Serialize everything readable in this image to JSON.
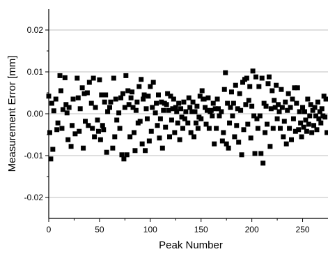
{
  "chart_data": {
    "type": "scatter",
    "xlabel": "Peak Number",
    "ylabel": "Measurement Error [mm]",
    "xlim": [
      0,
      275
    ],
    "ylim": [
      -0.025,
      0.025
    ],
    "x_ticks": [
      0,
      50,
      100,
      150,
      200,
      250
    ],
    "x_tick_labels": [
      "0",
      "50",
      "100",
      "150",
      "200",
      "250"
    ],
    "y_ticks": [
      -0.02,
      -0.01,
      0.0,
      0.01,
      0.02
    ],
    "y_tick_labels": [
      "-0.02",
      "-0.01",
      "0.00",
      "0.01",
      "0.02"
    ],
    "grid": "horizontal",
    "marker": "square",
    "colors": {
      "marker": "#000000",
      "grid": "#bfbfbf",
      "axis": "#000000",
      "background": "#ffffff"
    },
    "series": [
      {
        "points": [
          [
            0,
            0.0042
          ],
          [
            1,
            -0.0045
          ],
          [
            2,
            -0.0108
          ],
          [
            3,
            0.0025
          ],
          [
            4,
            -0.0085
          ],
          [
            5,
            0.0007
          ],
          [
            7,
            0.0035
          ],
          [
            8,
            -0.0038
          ],
          [
            9,
            -0.0022
          ],
          [
            11,
            0.0091
          ],
          [
            12,
            0.0055
          ],
          [
            13,
            -0.0035
          ],
          [
            14,
            0.001
          ],
          [
            16,
            0.0086
          ],
          [
            17,
            0.0022
          ],
          [
            18,
            0.0002
          ],
          [
            19,
            -0.0062
          ],
          [
            20,
            0.0015
          ],
          [
            22,
            -0.0078
          ],
          [
            23,
            -0.0028
          ],
          [
            24,
            0.0035
          ],
          [
            26,
            -0.0048
          ],
          [
            28,
            0.0085
          ],
          [
            29,
            0.0038
          ],
          [
            30,
            -0.0042
          ],
          [
            31,
            0.0012
          ],
          [
            33,
            0.0062
          ],
          [
            34,
            -0.0082
          ],
          [
            35,
            0.0048
          ],
          [
            36,
            -0.0018
          ],
          [
            38,
            0.005
          ],
          [
            39,
            -0.0028
          ],
          [
            40,
            0.0075
          ],
          [
            42,
            0.0025
          ],
          [
            43,
            -0.0035
          ],
          [
            44,
            0.0085
          ],
          [
            45,
            -0.0055
          ],
          [
            46,
            0.0015
          ],
          [
            48,
            -0.0015
          ],
          [
            49,
            -0.0042
          ],
          [
            50,
            0.0081
          ],
          [
            51,
            -0.0062
          ],
          [
            52,
            0.0045
          ],
          [
            53,
            -0.0028
          ],
          [
            54,
            -0.0038
          ],
          [
            55,
            0.0028
          ],
          [
            56,
            0.0045
          ],
          [
            57,
            -0.0092
          ],
          [
            58,
            0.0005
          ],
          [
            60,
            0.0015
          ],
          [
            61,
            0.0028
          ],
          [
            63,
            -0.0082
          ],
          [
            64,
            0.0085
          ],
          [
            65,
            -0.0055
          ],
          [
            66,
            0.0035
          ],
          [
            67,
            -0.0015
          ],
          [
            69,
            0.0002
          ],
          [
            70,
            -0.0035
          ],
          [
            71,
            0.0038
          ],
          [
            72,
            -0.0098
          ],
          [
            73,
            0.0048
          ],
          [
            74,
            -0.0108
          ],
          [
            75,
            0.0015
          ],
          [
            76,
            0.0091
          ],
          [
            77,
            -0.0098
          ],
          [
            78,
            0.0055
          ],
          [
            79,
            0.0022
          ],
          [
            80,
            -0.0055
          ],
          [
            81,
            0.0038
          ],
          [
            82,
            0.0052
          ],
          [
            83,
            0.0015
          ],
          [
            84,
            -0.0045
          ],
          [
            85,
            -0.0088
          ],
          [
            86,
            0.0008
          ],
          [
            87,
            0.0028
          ],
          [
            88,
            -0.0022
          ],
          [
            89,
            0.0065
          ],
          [
            90,
            -0.0018
          ],
          [
            91,
            0.0082
          ],
          [
            92,
            -0.0072
          ],
          [
            93,
            0.0035
          ],
          [
            94,
            0.0045
          ],
          [
            95,
            -0.0088
          ],
          [
            96,
            0.0012
          ],
          [
            97,
            -0.0012
          ],
          [
            98,
            0.0042
          ],
          [
            99,
            -0.0065
          ],
          [
            100,
            0.0065
          ],
          [
            101,
            -0.0042
          ],
          [
            102,
            0.0015
          ],
          [
            103,
            0.0075
          ],
          [
            105,
            0.0002
          ],
          [
            106,
            0.0025
          ],
          [
            107,
            -0.0028
          ],
          [
            108,
            0.0045
          ],
          [
            109,
            -0.0058
          ],
          [
            110,
            -0.0012
          ],
          [
            111,
            0.0028
          ],
          [
            112,
            -0.0082
          ],
          [
            113,
            0.0008
          ],
          [
            114,
            0.0025
          ],
          [
            115,
            -0.0032
          ],
          [
            116,
            0.0022
          ],
          [
            117,
            0.0048
          ],
          [
            118,
            0.0008
          ],
          [
            119,
            -0.0055
          ],
          [
            120,
            0.0042
          ],
          [
            121,
            -0.0015
          ],
          [
            122,
            0.0012
          ],
          [
            123,
            0.0035
          ],
          [
            124,
            -0.0045
          ],
          [
            125,
            0.0015
          ],
          [
            126,
            0.0005
          ],
          [
            127,
            -0.0022
          ],
          [
            128,
            0.0025
          ],
          [
            129,
            -0.0062
          ],
          [
            130,
            0.0012
          ],
          [
            131,
            -0.0008
          ],
          [
            132,
            -0.0035
          ],
          [
            133,
            0.0028
          ],
          [
            134,
            -0.0012
          ],
          [
            135,
            0.0005
          ],
          [
            137,
            -0.0022
          ],
          [
            138,
            0.0038
          ],
          [
            139,
            0.0015
          ],
          [
            140,
            -0.0045
          ],
          [
            141,
            0.0005
          ],
          [
            142,
            0.0028
          ],
          [
            143,
            -0.0055
          ],
          [
            144,
            0.0005
          ],
          [
            145,
            -0.0022
          ],
          [
            146,
            0.0018
          ],
          [
            147,
            -0.0035
          ],
          [
            148,
            -0.0008
          ],
          [
            149,
            0.0042
          ],
          [
            150,
            -0.0012
          ],
          [
            151,
            0.0055
          ],
          [
            152,
            0.0035
          ],
          [
            153,
            0.0035
          ],
          [
            154,
            0.0015
          ],
          [
            155,
            -0.0025
          ],
          [
            156,
            0.0008
          ],
          [
            157,
            0.0038
          ],
          [
            158,
            -0.0035
          ],
          [
            159,
            0.0005
          ],
          [
            160,
            0.0008
          ],
          [
            161,
            -0.0005
          ],
          [
            162,
            0.0025
          ],
          [
            163,
            -0.0072
          ],
          [
            164,
            0.0012
          ],
          [
            165,
            -0.0035
          ],
          [
            166,
            0.0035
          ],
          [
            167,
            0.0012
          ],
          [
            168,
            -0.0005
          ],
          [
            170,
            0.0005
          ],
          [
            171,
            -0.0065
          ],
          [
            172,
            -0.0045
          ],
          [
            173,
            0.0058
          ],
          [
            174,
            0.0098
          ],
          [
            175,
            -0.0072
          ],
          [
            176,
            0.0025
          ],
          [
            177,
            -0.0082
          ],
          [
            178,
            -0.0022
          ],
          [
            179,
            0.0015
          ],
          [
            180,
            0.0052
          ],
          [
            181,
            -0.0005
          ],
          [
            182,
            0.0025
          ],
          [
            183,
            -0.0055
          ],
          [
            184,
            0.0068
          ],
          [
            185,
            -0.0028
          ],
          [
            186,
            0.0012
          ],
          [
            187,
            -0.0068
          ],
          [
            188,
            0.0048
          ],
          [
            189,
            0.0008
          ],
          [
            190,
            -0.0098
          ],
          [
            191,
            0.0075
          ],
          [
            192,
            -0.0038
          ],
          [
            193,
            0.0082
          ],
          [
            194,
            0.0022
          ],
          [
            195,
            0.0085
          ],
          [
            196,
            -0.0025
          ],
          [
            197,
            0.0032
          ],
          [
            198,
            0.0065
          ],
          [
            199,
            -0.0058
          ],
          [
            200,
            0.0018
          ],
          [
            201,
            0.0102
          ],
          [
            202,
            -0.0005
          ],
          [
            203,
            -0.0095
          ],
          [
            204,
            0.0088
          ],
          [
            205,
            -0.0012
          ],
          [
            206,
            -0.0035
          ],
          [
            207,
            0.0065
          ],
          [
            208,
            -0.0005
          ],
          [
            209,
            -0.0095
          ],
          [
            210,
            0.0085
          ],
          [
            211,
            -0.0118
          ],
          [
            212,
            0.0025
          ],
          [
            213,
            -0.0045
          ],
          [
            214,
            0.0018
          ],
          [
            215,
            -0.0025
          ],
          [
            216,
            0.0072
          ],
          [
            217,
            0.0088
          ],
          [
            218,
            -0.0078
          ],
          [
            219,
            0.0012
          ],
          [
            220,
            0.0055
          ],
          [
            221,
            -0.0035
          ],
          [
            222,
            0.0032
          ],
          [
            223,
            0.0015
          ],
          [
            224,
            0.0068
          ],
          [
            225,
            -0.0012
          ],
          [
            226,
            0.0022
          ],
          [
            227,
            0.0005
          ],
          [
            228,
            -0.0035
          ],
          [
            229,
            0.0058
          ],
          [
            230,
            0.0015
          ],
          [
            231,
            -0.0055
          ],
          [
            232,
            -0.0018
          ],
          [
            233,
            0.0028
          ],
          [
            234,
            -0.0072
          ],
          [
            235,
            0.0008
          ],
          [
            236,
            0.0048
          ],
          [
            237,
            -0.0035
          ],
          [
            238,
            0.0015
          ],
          [
            239,
            -0.0062
          ],
          [
            240,
            0.0035
          ],
          [
            241,
            -0.0012
          ],
          [
            242,
            0.0062
          ],
          [
            243,
            -0.0042
          ],
          [
            244,
            0.0025
          ],
          [
            245,
            0.0062
          ],
          [
            246,
            -0.0038
          ],
          [
            247,
            0.0005
          ],
          [
            248,
            -0.0022
          ],
          [
            249,
            -0.0055
          ],
          [
            250,
            0.0015
          ],
          [
            251,
            -0.0032
          ],
          [
            252,
            0.0005
          ],
          [
            253,
            -0.0015
          ],
          [
            254,
            -0.0042
          ],
          [
            255,
            0.0035
          ],
          [
            256,
            -0.0025
          ],
          [
            257,
            -0.0005
          ],
          [
            258,
            0.0022
          ],
          [
            259,
            -0.0045
          ],
          [
            260,
            0.0008
          ],
          [
            261,
            -0.0028
          ],
          [
            262,
            0.0015
          ],
          [
            263,
            -0.0005
          ],
          [
            264,
            -0.0038
          ],
          [
            265,
            0.0028
          ],
          [
            266,
            -0.0012
          ],
          [
            267,
            0.0005
          ],
          [
            268,
            -0.0022
          ],
          [
            269,
            0.0012
          ],
          [
            270,
            -0.0005
          ],
          [
            271,
            0.0042
          ],
          [
            272,
            -0.0008
          ],
          [
            273,
            0.0035
          ],
          [
            274,
            -0.0045
          ]
        ]
      }
    ]
  }
}
